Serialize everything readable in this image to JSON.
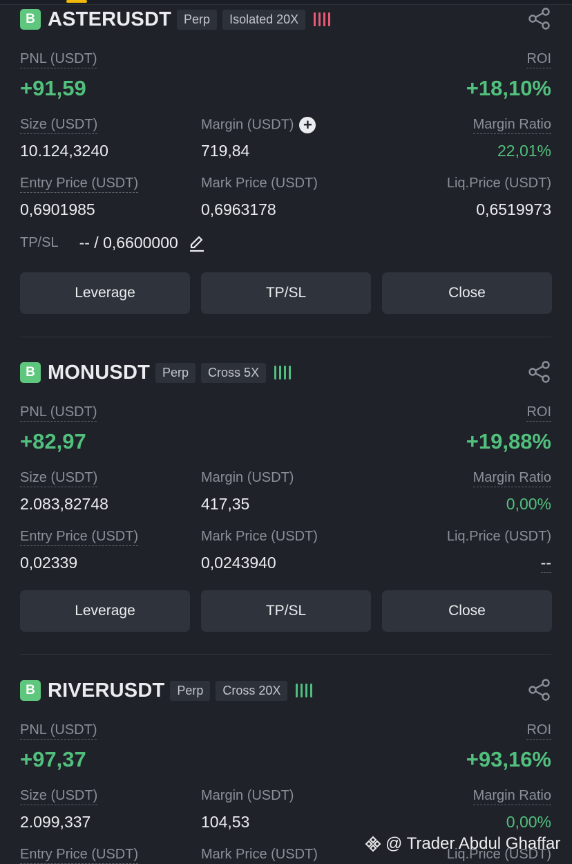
{
  "positions": [
    {
      "symbol": "ASTERUSDT",
      "side_badge": "B",
      "type_tag": "Perp",
      "margin_tag": "Isolated 20X",
      "risk_color": "#e75a74",
      "pnl_label": "PNL (USDT)",
      "pnl_value": "+91,59",
      "roi_label": "ROI",
      "roi_value": "+18,10%",
      "size_label": "Size (USDT)",
      "size_value": "10.124,3240",
      "margin_label": "Margin (USDT)",
      "margin_value": "719,84",
      "margin_ratio_label": "Margin Ratio",
      "margin_ratio_value": "22,01%",
      "entry_label": "Entry Price (USDT)",
      "entry_value": "0,6901985",
      "mark_label": "Mark Price (USDT)",
      "mark_value": "0,6963178",
      "liq_label": "Liq.Price (USDT)",
      "liq_value": "0,6519973",
      "tpsl_label": "TP/SL",
      "tpsl_value": "-- / 0,6600000",
      "buttons": [
        "Leverage",
        "TP/SL",
        "Close"
      ]
    },
    {
      "symbol": "MONUSDT",
      "side_badge": "B",
      "type_tag": "Perp",
      "margin_tag": "Cross 5X",
      "risk_color": "#4fbf7f",
      "pnl_label": "PNL (USDT)",
      "pnl_value": "+82,97",
      "roi_label": "ROI",
      "roi_value": "+19,88%",
      "size_label": "Size (USDT)",
      "size_value": "2.083,82748",
      "margin_label": "Margin (USDT)",
      "margin_value": "417,35",
      "margin_ratio_label": "Margin Ratio",
      "margin_ratio_value": "0,00%",
      "entry_label": "Entry Price (USDT)",
      "entry_value": "0,02339",
      "mark_label": "Mark Price (USDT)",
      "mark_value": "0,0243940",
      "liq_label": "Liq.Price (USDT)",
      "liq_value": "--",
      "buttons": [
        "Leverage",
        "TP/SL",
        "Close"
      ]
    },
    {
      "symbol": "RIVERUSDT",
      "side_badge": "B",
      "type_tag": "Perp",
      "margin_tag": "Cross 20X",
      "risk_color": "#4fbf7f",
      "pnl_label": "PNL (USDT)",
      "pnl_value": "+97,37",
      "roi_label": "ROI",
      "roi_value": "+93,16%",
      "size_label": "Size (USDT)",
      "size_value": "2.099,337",
      "margin_label": "Margin (USDT)",
      "margin_value": "104,53",
      "margin_ratio_label": "Margin Ratio",
      "margin_ratio_value": "0,00%",
      "entry_label": "Entry Price (USDT)",
      "mark_label": "Mark Price (USDT)",
      "liq_label": "Liq.Price (USDT)"
    }
  ],
  "watermark": {
    "text": "@ Trader Abdul Ghaffar",
    "icon": "binance-logo-icon"
  },
  "icons": {
    "share": "share-icon",
    "edit": "edit-pencil-icon",
    "add_margin": "plus-circle-icon"
  }
}
